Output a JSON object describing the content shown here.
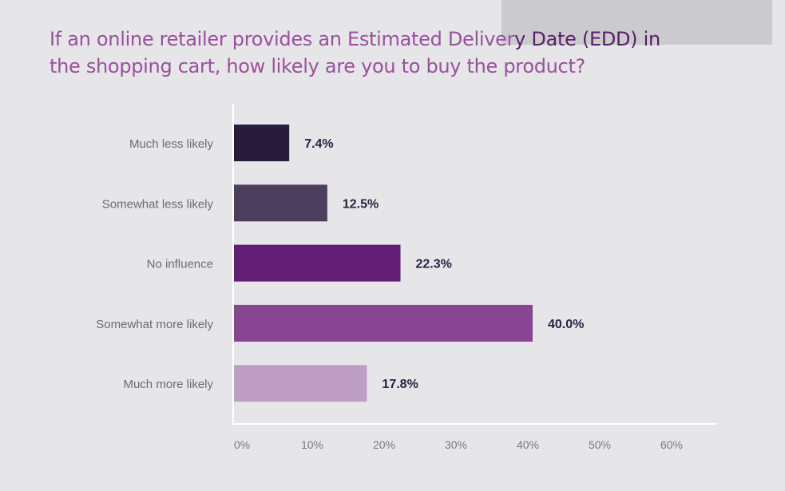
{
  "chart_data": {
    "type": "bar",
    "orientation": "horizontal",
    "title": "If an online retailer provides an Estimated Delivery Date (EDD) in the shopping cart, how likely are you to buy the product?",
    "categories": [
      "Much less likely",
      "Somewhat less likely",
      "No influence",
      "Somewhat more likely",
      "Much more likely"
    ],
    "values": [
      7.4,
      12.5,
      22.3,
      40.0,
      17.8
    ],
    "data_labels": [
      "7.4%",
      "12.5%",
      "22.3%",
      "40.0%",
      "17.8%"
    ],
    "colors": [
      "#271c3c",
      "#4c3f5e",
      "#611e74",
      "#874592",
      "#bf9ec5"
    ],
    "xlabel": "",
    "ylabel": "",
    "xlim": [
      0,
      60
    ],
    "xticks": [
      "0%",
      "10%",
      "20%",
      "30%",
      "40%",
      "50%",
      "60%"
    ],
    "grid": false,
    "legend": "none"
  },
  "title_parts": {
    "line1_light": "If an online retailer provides an Estimated Deliver",
    "line1_dark": "y Date (EDD) in",
    "line2": "the shopping cart, how likely are you to buy the product?"
  }
}
